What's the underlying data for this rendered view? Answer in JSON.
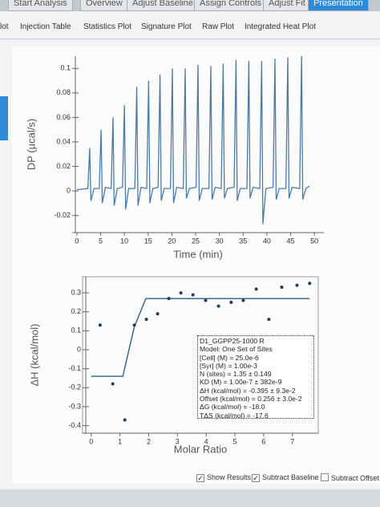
{
  "tabs": [
    "Start Analysis",
    "Overview",
    "Adjust Baseline",
    "Assign Controls",
    "Adjust Fit",
    "Presentation"
  ],
  "subtabs": [
    "lot",
    "Injection Table",
    "Statistics Plot",
    "Signature Plot",
    "Raw Plot",
    "Integrated Heat Plot"
  ],
  "chart_data": [
    {
      "type": "line",
      "xlabel": "Time (min)",
      "ylabel": "DP (µcal/s)",
      "color": "#4a7ba6",
      "xlim": [
        -1,
        52
      ],
      "xticks": [
        0,
        5,
        10,
        15,
        20,
        25,
        30,
        35,
        40,
        45,
        50
      ],
      "ylim": [
        -0.034,
        0.11
      ],
      "yticks": [
        -0.02,
        0,
        0.02,
        0.04,
        0.06,
        0.08,
        0.1
      ],
      "x": [
        0,
        2.3,
        2.7,
        2.95,
        3.6,
        4.7,
        5.1,
        5.35,
        6.0,
        7.2,
        7.6,
        7.85,
        8.5,
        9.6,
        10.0,
        10.25,
        10.9,
        12.2,
        12.6,
        12.85,
        13.5,
        14.7,
        15.1,
        15.35,
        16.0,
        17.1,
        17.5,
        17.75,
        18.4,
        19.7,
        20.1,
        20.35,
        21.0,
        22.4,
        22.8,
        23.05,
        23.7,
        25.1,
        25.5,
        25.75,
        26.4,
        27.8,
        28.2,
        28.45,
        29.1,
        30.4,
        30.8,
        31.05,
        31.7,
        33.1,
        33.5,
        33.75,
        34.4,
        35.8,
        36.2,
        36.45,
        37.1,
        38.5,
        38.9,
        39.15,
        39.8,
        41.3,
        41.7,
        41.95,
        42.6,
        44.0,
        44.4,
        44.65,
        45.3,
        46.9,
        47.3,
        47.55,
        48.2,
        49.0
      ],
      "values": [
        0.001,
        0.002,
        0.035,
        -0.008,
        0.002,
        0.002,
        0.05,
        -0.01,
        0.003,
        0.002,
        0.06,
        -0.012,
        0.002,
        0.003,
        0.07,
        -0.015,
        0.002,
        0.002,
        0.085,
        -0.012,
        0.003,
        0.002,
        0.09,
        -0.01,
        0.002,
        0.003,
        0.095,
        -0.008,
        0.002,
        0.002,
        0.1,
        -0.01,
        0.003,
        0.002,
        0.1,
        -0.006,
        0.002,
        0.003,
        0.103,
        -0.008,
        0.002,
        0.002,
        0.102,
        -0.007,
        0.003,
        0.002,
        0.104,
        -0.006,
        0.002,
        0.003,
        0.107,
        -0.008,
        0.002,
        0.002,
        0.106,
        -0.006,
        0.003,
        0.002,
        0.106,
        -0.027,
        0.002,
        0.003,
        0.108,
        -0.007,
        0.002,
        0.002,
        0.109,
        -0.006,
        0.003,
        0.002,
        0.11,
        -0.007,
        0.002,
        0.004
      ]
    },
    {
      "type": "scatter",
      "xlabel": "Molar Ratio",
      "ylabel": "ΔH (kcal/mol)",
      "color": "#2e5f8a",
      "xlim": [
        -0.3,
        7.9
      ],
      "xticks": [
        0,
        1,
        2,
        3,
        4,
        5,
        6,
        7
      ],
      "ylim": [
        -0.44,
        0.385
      ],
      "yticks": [
        -0.4,
        -0.3,
        -0.2,
        -0.1,
        0,
        0.1,
        0.2,
        0.3
      ],
      "x": [
        0.31,
        0.75,
        1.17,
        1.5,
        1.92,
        2.31,
        2.7,
        3.12,
        3.54,
        3.98,
        4.43,
        4.87,
        5.29,
        5.74,
        6.18,
        6.63,
        7.16,
        7.6
      ],
      "values": [
        0.13,
        -0.18,
        -0.37,
        0.13,
        0.16,
        0.19,
        0.27,
        0.3,
        0.29,
        0.26,
        0.23,
        0.25,
        0.26,
        0.32,
        0.16,
        0.33,
        0.34,
        0.35
      ],
      "fit_x": [
        0,
        1.1,
        1.5,
        1.9,
        7.6
      ],
      "fit_values": [
        -0.14,
        -0.14,
        0.12,
        0.27,
        0.27
      ]
    }
  ],
  "annotation": {
    "lines": [
      "D1_GGPP25-1000 R",
      "Model: One Set of Sites",
      "[Cell] (M) = 25.0e-6",
      "[Syr] (M) = 1.00e-3",
      "N (sites) = 1.35 ± 0.149",
      "KD (M) = 1.00e-7 ± 382e-9",
      "ΔH (kcal/mol) = -0.395 ± 9.3e-2",
      "Offset (kcal/mol) = 0.256 ± 3.0e-2",
      "ΔG (kcal/mol) = -18.0",
      "TΔS (kcal/mol) = -17.6"
    ]
  },
  "options": [
    {
      "label": "Show Results",
      "checked": true
    },
    {
      "label": "Subtract Baseline",
      "checked": true
    },
    {
      "label": "Subtract Offset",
      "checked": false
    }
  ]
}
